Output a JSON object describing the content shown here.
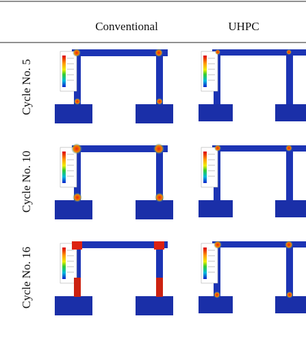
{
  "table": {
    "columns": [
      "Conventional",
      "UHPC"
    ],
    "rows": [
      "Cycle No. 5",
      "Cycle No. 10",
      "Cycle No. 16"
    ]
  }
}
